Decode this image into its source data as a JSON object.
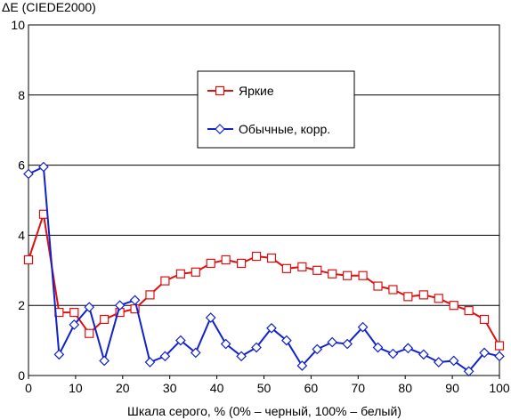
{
  "chart_data": {
    "type": "line",
    "title": "ΔE (CIEDE2000)",
    "xlabel": "Шкала серого, % (0% – черный, 100% – белый)",
    "ylabel": "",
    "xlim": [
      0,
      100
    ],
    "ylim": [
      0,
      10
    ],
    "xticks": [
      0,
      10,
      20,
      30,
      40,
      50,
      60,
      70,
      80,
      90,
      100
    ],
    "yticks": [
      0,
      2,
      4,
      6,
      8,
      10
    ],
    "grid": "horizontal",
    "legend_position": "center",
    "series": [
      {
        "name": "Яркие",
        "color": "#dd1111",
        "marker": "square",
        "x": [
          0,
          3.2,
          6.5,
          9.7,
          12.9,
          16.1,
          19.4,
          22.6,
          25.8,
          29,
          32.3,
          35.5,
          38.7,
          41.9,
          45.2,
          48.4,
          51.6,
          54.8,
          58.1,
          61.3,
          64.5,
          67.7,
          71,
          74.2,
          77.4,
          80.6,
          83.9,
          87.1,
          90.3,
          93.5,
          96.8,
          100
        ],
        "y": [
          3.3,
          4.6,
          1.8,
          1.8,
          1.2,
          1.6,
          1.8,
          1.9,
          2.3,
          2.7,
          2.9,
          2.95,
          3.2,
          3.3,
          3.2,
          3.4,
          3.35,
          3.05,
          3.1,
          3.0,
          2.9,
          2.85,
          2.85,
          2.55,
          2.45,
          2.25,
          2.3,
          2.2,
          2.0,
          1.85,
          1.6,
          0.85
        ]
      },
      {
        "name": "Обычные, корр.",
        "color": "#1122cc",
        "marker": "diamond",
        "x": [
          0,
          3.2,
          6.5,
          9.7,
          12.9,
          16.1,
          19.4,
          22.6,
          25.8,
          29,
          32.3,
          35.5,
          38.7,
          41.9,
          45.2,
          48.4,
          51.6,
          54.8,
          58.1,
          61.3,
          64.5,
          67.7,
          71,
          74.2,
          77.4,
          80.6,
          83.9,
          87.1,
          90.3,
          93.5,
          96.8,
          100
        ],
        "y": [
          5.75,
          5.95,
          0.6,
          1.45,
          1.95,
          0.42,
          2.0,
          2.15,
          0.38,
          0.55,
          1.0,
          0.65,
          1.65,
          0.9,
          0.55,
          0.8,
          1.35,
          1.0,
          0.28,
          0.75,
          0.95,
          0.9,
          1.38,
          0.8,
          0.62,
          0.78,
          0.6,
          0.38,
          0.42,
          0.12,
          0.65,
          0.55
        ]
      }
    ]
  }
}
